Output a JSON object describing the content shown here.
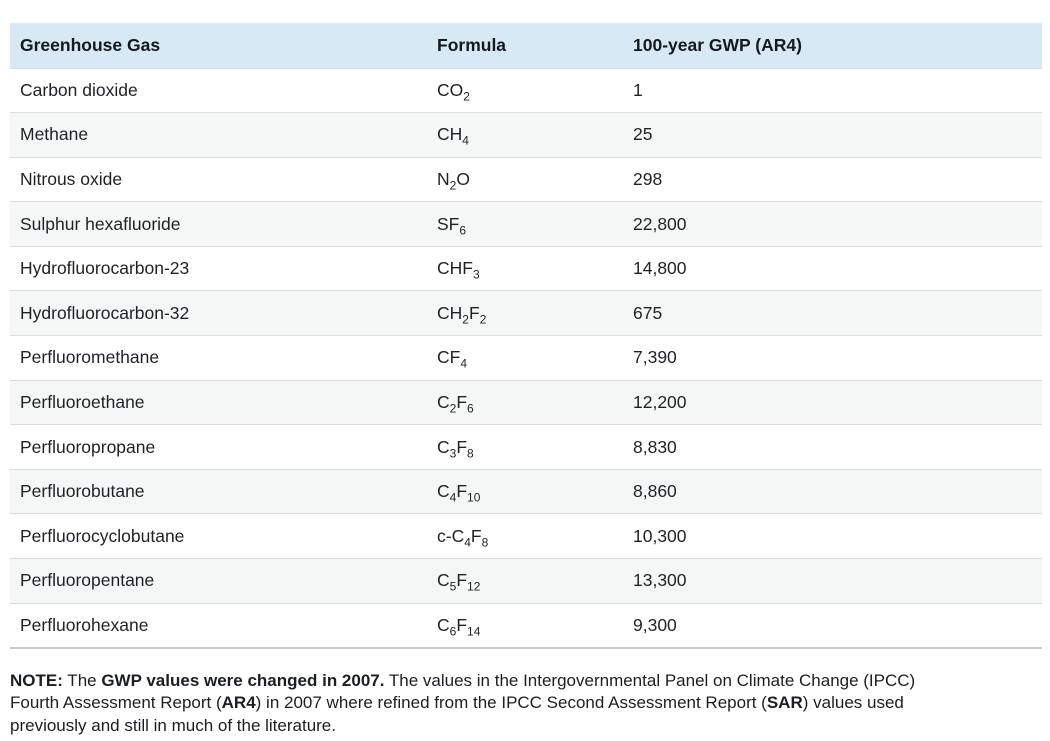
{
  "table": {
    "columns": [
      "Greenhouse Gas",
      "Formula",
      "100-year GWP (AR4)"
    ],
    "rows": [
      {
        "gas": "Carbon dioxide",
        "formula": "CO_2",
        "gwp": "1"
      },
      {
        "gas": "Methane",
        "formula": "CH_4",
        "gwp": "25"
      },
      {
        "gas": "Nitrous oxide",
        "formula": "N_2O",
        "gwp": "298"
      },
      {
        "gas": "Sulphur hexafluoride",
        "formula": "SF_6",
        "gwp": "22,800"
      },
      {
        "gas": "Hydrofluorocarbon-23",
        "formula": "CHF_3",
        "gwp": "14,800"
      },
      {
        "gas": "Hydrofluorocarbon-32",
        "formula": "CH_2F_2",
        "gwp": "675"
      },
      {
        "gas": "Perfluoromethane",
        "formula": "CF_4",
        "gwp": "7,390"
      },
      {
        "gas": "Perfluoroethane",
        "formula": "C_2F_6",
        "gwp": "12,200"
      },
      {
        "gas": "Perfluoropropane",
        "formula": "C_3F_8",
        "gwp": "8,830"
      },
      {
        "gas": "Perfluorobutane",
        "formula": "C_4F_10",
        "gwp": "8,860"
      },
      {
        "gas": "Perfluorocyclobutane",
        "formula": "c-C_4F_8",
        "gwp": "10,300"
      },
      {
        "gas": "Perfluoropentane",
        "formula": "C_5F_12",
        "gwp": "13,300"
      },
      {
        "gas": "Perfluorohexane",
        "formula": "C_6F_14",
        "gwp": "9,300"
      }
    ]
  },
  "note": {
    "lines": [
      [
        {
          "text": "NOTE:",
          "bold": true
        },
        {
          "text": " The ",
          "bold": false
        },
        {
          "text": "GWP values were changed in 2007.",
          "bold": true
        },
        {
          "text": " The values in the Intergovernmental Panel on Climate Change (IPCC)",
          "bold": false
        }
      ],
      [
        {
          "text": "Fourth Assessment Report (",
          "bold": false
        },
        {
          "text": "AR4",
          "bold": true
        },
        {
          "text": ") in 2007 where refined from the IPCC Second Assessment Report (",
          "bold": false
        },
        {
          "text": "SAR",
          "bold": true
        },
        {
          "text": ") values used",
          "bold": false
        }
      ],
      [
        {
          "text": "previously and still in much of the literature.",
          "bold": false
        }
      ]
    ]
  },
  "colors": {
    "header_bg": "#d7e9f4",
    "stripe_bg": "#f5f6f6",
    "row_border": "#dcdcdc",
    "bottom_border": "#cbcbcb",
    "text": "#1e2126"
  },
  "chart_data": {
    "type": "table",
    "title": "",
    "columns": [
      "Greenhouse Gas",
      "Formula",
      "100-year GWP (AR4)"
    ],
    "rows": [
      [
        "Carbon dioxide",
        "CO2",
        1
      ],
      [
        "Methane",
        "CH4",
        25
      ],
      [
        "Nitrous oxide",
        "N2O",
        298
      ],
      [
        "Sulphur hexafluoride",
        "SF6",
        22800
      ],
      [
        "Hydrofluorocarbon-23",
        "CHF3",
        14800
      ],
      [
        "Hydrofluorocarbon-32",
        "CH2F2",
        675
      ],
      [
        "Perfluoromethane",
        "CF4",
        7390
      ],
      [
        "Perfluoroethane",
        "C2F6",
        12200
      ],
      [
        "Perfluoropropane",
        "C3F8",
        8830
      ],
      [
        "Perfluorobutane",
        "C4F10",
        8860
      ],
      [
        "Perfluorocyclobutane",
        "c-C4F8",
        10300
      ],
      [
        "Perfluoropentane",
        "C5F12",
        13300
      ],
      [
        "Perfluorohexane",
        "C6F14",
        9300
      ]
    ]
  }
}
